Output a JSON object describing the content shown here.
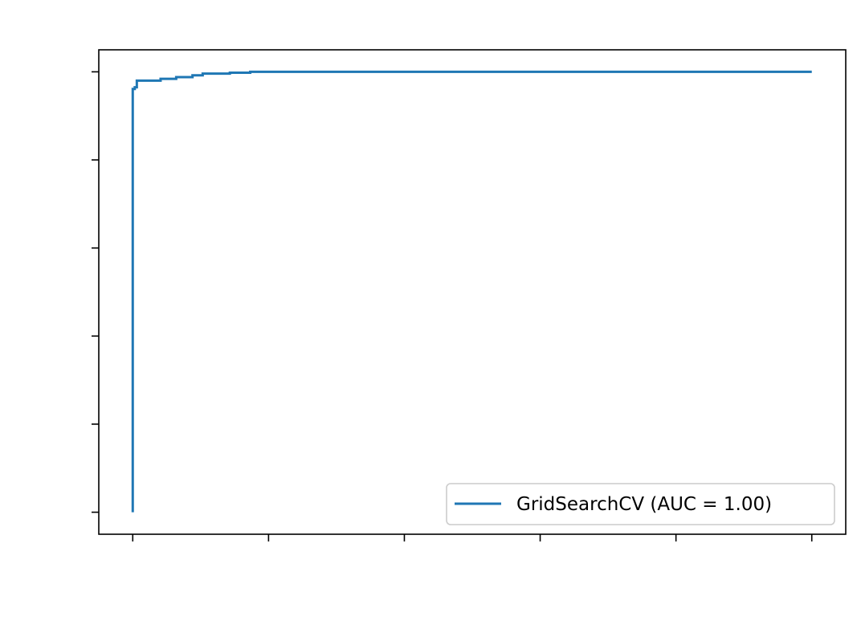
{
  "chart_data": {
    "type": "line",
    "title": "",
    "xlabel": "",
    "ylabel": "",
    "xlim": [
      -0.05,
      1.05
    ],
    "ylim": [
      -0.05,
      1.05
    ],
    "x_ticks": [
      0,
      0.2,
      0.4,
      0.6,
      0.8,
      1.0
    ],
    "y_ticks": [
      0,
      0.2,
      0.4,
      0.6,
      0.8,
      1.0
    ],
    "grid": false,
    "legend_position": "lower-right",
    "series": [
      {
        "name": "GridSearchCV (AUC = 1.00)",
        "color": "#1f77b4",
        "x": [
          0,
          0,
          0.003,
          0.003,
          0.006,
          0.006,
          0.041,
          0.041,
          0.064,
          0.064,
          0.088,
          0.088,
          0.103,
          0.103,
          0.143,
          0.143,
          0.173,
          0.173,
          1.0
        ],
        "y": [
          0,
          0.961,
          0.961,
          0.965,
          0.965,
          0.98,
          0.98,
          0.984,
          0.984,
          0.988,
          0.988,
          0.992,
          0.992,
          0.996,
          0.996,
          0.998,
          0.998,
          1.0,
          1.0
        ]
      }
    ]
  }
}
